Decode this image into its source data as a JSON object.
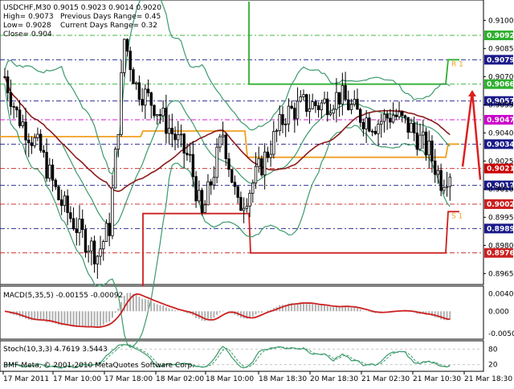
{
  "header": {
    "symbol_line": "USDCHF,M30  0.9015 0.9023 0.9014 0.9020",
    "high": "High= 0.9073",
    "prev_range": "Previous Days Range= 0.45",
    "low": "Low= 0.9028",
    "cur_range": "Current Days Range= 0.32",
    "close": "Close= 0.904"
  },
  "copyright": "BMF-Meta, © 2001-2010 MetaQuotes Software Corp.",
  "colors": {
    "candle": "#000000",
    "bollinger": "#3c9a6c",
    "ma_slow": "#8b1a1a",
    "orange": "#f0a020",
    "green_line": "#30b030",
    "red_line": "#cc2020",
    "arrow": "#dd2020",
    "macd_hist": "#b0b0b0",
    "macd_signal": "#cc2020",
    "stoch_main": "#3c9a6c",
    "stoch_signal": "#3c9a6c",
    "grid": "#c8c8c8"
  },
  "chart_data": [
    {
      "type": "candlestick",
      "symbol": "USDCHF",
      "timeframe": "M30",
      "ylim": [
        0.896,
        0.911
      ],
      "y_ticks": [
        "0.9100",
        "0.9085",
        "0.9070",
        "0.9055",
        "0.9040",
        "0.9025",
        "0.9010",
        "0.8995",
        "0.8980",
        "0.8965"
      ],
      "x_ticks": [
        "17 Mar 2011",
        "17 Mar 10:00",
        "17 Mar 18:00",
        "18 Mar 02:00",
        "18 Mar 10:00",
        "18 Mar 18:30",
        "20 Mar 18:30",
        "21 Mar 02:30",
        "21 Mar 10:30",
        "21 Mar 18:30"
      ],
      "level_lines": [
        {
          "label": "0.9092",
          "value": 0.9092,
          "color": "#30b030"
        },
        {
          "label": "0.9079",
          "value": 0.9079,
          "color": "#1a1a8a"
        },
        {
          "label": "0.9066",
          "value": 0.9066,
          "color": "#30b030"
        },
        {
          "label": "0.9057",
          "value": 0.9057,
          "color": "#1a1a8a"
        },
        {
          "label": "0.9047",
          "value": 0.9047,
          "color": "#cc00cc"
        },
        {
          "label": "0.9034",
          "value": 0.9034,
          "color": "#1a1a8a"
        },
        {
          "label": "0.9021",
          "value": 0.9021,
          "color": "#cc2020"
        },
        {
          "label": "0.9012",
          "value": 0.9012,
          "color": "#1a1a8a"
        },
        {
          "label": "0.9002",
          "value": 0.9002,
          "color": "#cc2020"
        },
        {
          "label": "0.8989",
          "value": 0.8989,
          "color": "#1a1a8a"
        },
        {
          "label": "0.8976",
          "value": 0.8976,
          "color": "#cc2020"
        }
      ],
      "current_price": {
        "label": "0.9021",
        "value": 0.9021
      },
      "r_label": "R 1",
      "s_label": "S 1"
    },
    {
      "type": "macd",
      "title": "MACD(5,35,5) -0.00155 -0.00092",
      "ylim": [
        -0.006,
        0.005
      ],
      "y_ticks": [
        "0.00403",
        "0.000",
        "-0.00509"
      ]
    },
    {
      "type": "stochastic",
      "title": "Stoch(10,3,3) 4.7619 3.5443",
      "ylim": [
        0,
        100
      ],
      "y_ticks": [
        "80",
        "20"
      ]
    }
  ]
}
